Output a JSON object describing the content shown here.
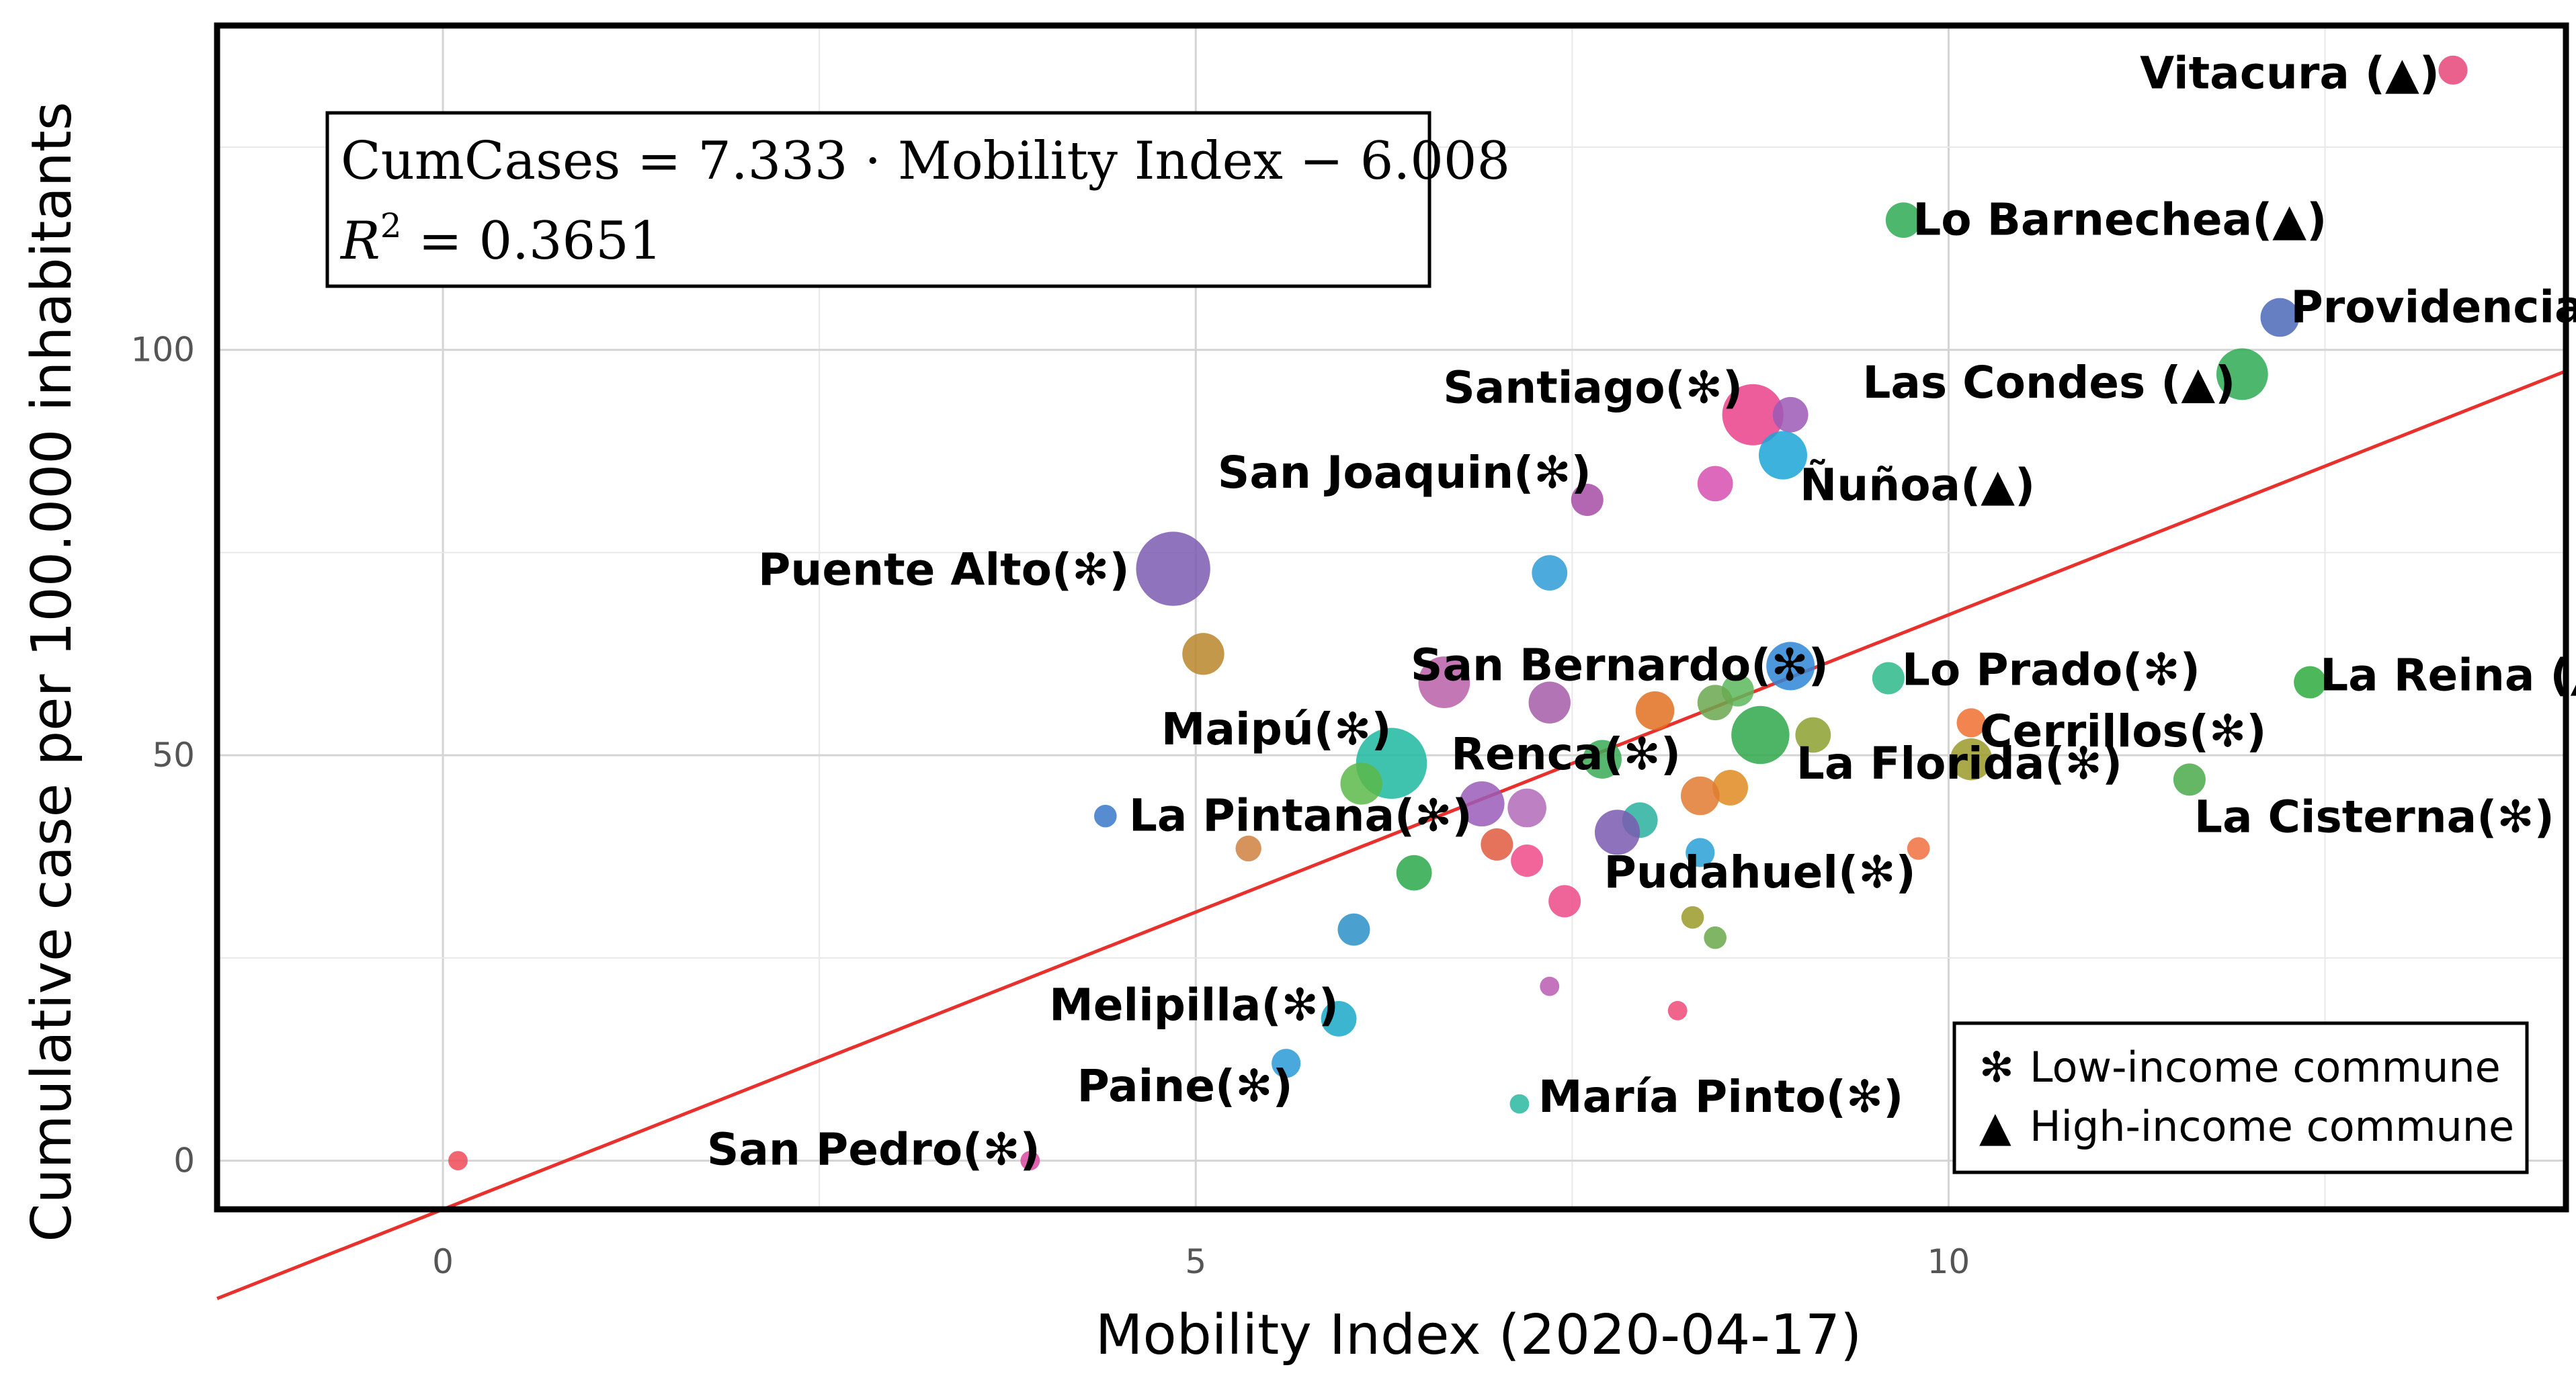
{
  "chart_data": {
    "type": "scatter",
    "xlabel": "Mobility Index (2020-04-17)",
    "ylabel": "Cumulative case per 100.000 inhabitants",
    "xlim": [
      -1.5,
      14.1
    ],
    "ylim": [
      -6,
      140
    ],
    "x_ticks": [
      0,
      5,
      10
    ],
    "y_ticks": [
      0,
      50,
      100
    ],
    "grid": true,
    "regression": {
      "equation": "CumCases = 7.333 · Mobility Index − 6.008",
      "r2_label": "R",
      "r2_sup": "2",
      "r2_value": " = 0.3651",
      "slope": 7.333,
      "intercept": -6.008,
      "color": "#e8312c"
    },
    "legend": {
      "position": "bottom-right",
      "items": [
        {
          "symbol": "✻",
          "label": "Low-income commune"
        },
        {
          "symbol": "▲",
          "label": "High-income commune"
        }
      ]
    },
    "points": [
      {
        "x": 13.35,
        "y": 134.5,
        "size": 9,
        "color": "#e8457a",
        "label": "Vitacura (▲)"
      },
      {
        "x": 9.7,
        "y": 116,
        "size": 11,
        "color": "#2eaa55",
        "label": "Lo Barnechea(▲)"
      },
      {
        "x": 12.2,
        "y": 104,
        "size": 12,
        "color": "#4b68b8",
        "label": "Providencia(▲)"
      },
      {
        "x": 11.95,
        "y": 97,
        "size": 16,
        "color": "#2eaa55",
        "label": "Las Condes (▲)"
      },
      {
        "x": 8.7,
        "y": 92,
        "size": 19,
        "color": "#ea3f8a",
        "label": "Santiago(✻)"
      },
      {
        "x": 8.95,
        "y": 92,
        "size": 11,
        "color": "#9b59b6",
        "label": ""
      },
      {
        "x": 8.9,
        "y": 87,
        "size": 15,
        "color": "#1aa5d6",
        "label": "Ñuñoa(▲)"
      },
      {
        "x": 8.45,
        "y": 83.5,
        "size": 11,
        "color": "#d64fb0",
        "label": ""
      },
      {
        "x": 7.6,
        "y": 81.5,
        "size": 10,
        "color": "#a64ca6",
        "label": "San Joaquin(✻)"
      },
      {
        "x": 4.85,
        "y": 73,
        "size": 23,
        "color": "#7b5bb0",
        "label": "Puente Alto(✻)"
      },
      {
        "x": 7.35,
        "y": 72.5,
        "size": 11,
        "color": "#2e9bd6",
        "label": ""
      },
      {
        "x": 5.05,
        "y": 62.5,
        "size": 13,
        "color": "#b8862a",
        "label": ""
      },
      {
        "x": 8.95,
        "y": 61,
        "size": 15,
        "color": "#2e86d6",
        "label": ""
      },
      {
        "x": 6.65,
        "y": 59,
        "size": 16,
        "color": "#b85fa8",
        "label": "San Bernardo(✻)"
      },
      {
        "x": 9.6,
        "y": 59.5,
        "size": 10,
        "color": "#2eb88a",
        "label": "Lo Prado(✻)"
      },
      {
        "x": 12.4,
        "y": 59,
        "size": 10,
        "color": "#2eaa3e",
        "label": "La Reina (▲)"
      },
      {
        "x": 8.6,
        "y": 58,
        "size": 10,
        "color": "#5cb85c",
        "label": ""
      },
      {
        "x": 8.45,
        "y": 56.5,
        "size": 11,
        "color": "#6aa84f",
        "label": ""
      },
      {
        "x": 7.35,
        "y": 56.5,
        "size": 13,
        "color": "#a45ca8",
        "label": ""
      },
      {
        "x": 8.05,
        "y": 55.5,
        "size": 12,
        "color": "#e07020",
        "label": ""
      },
      {
        "x": 10.15,
        "y": 54,
        "size": 9,
        "color": "#f07030",
        "label": "Cerrillos(✻)"
      },
      {
        "x": 8.75,
        "y": 52.5,
        "size": 18,
        "color": "#2ea84a",
        "label": ""
      },
      {
        "x": 9.1,
        "y": 52.5,
        "size": 11,
        "color": "#8ca030",
        "label": "La Florida(✻)"
      },
      {
        "x": 6.3,
        "y": 49,
        "size": 22,
        "color": "#1fb8a0",
        "label": "Maipú(✻)"
      },
      {
        "x": 7.7,
        "y": 49.5,
        "size": 12,
        "color": "#3aaa55",
        "label": "Renca(✻)"
      },
      {
        "x": 10.15,
        "y": 49.5,
        "size": 13,
        "color": "#9a9a2a",
        "label": ""
      },
      {
        "x": 6.1,
        "y": 46.5,
        "size": 13,
        "color": "#5cb84a",
        "label": ""
      },
      {
        "x": 11.6,
        "y": 47,
        "size": 10,
        "color": "#4aaa4a",
        "label": "La Cisterna(✻)"
      },
      {
        "x": 8.55,
        "y": 46,
        "size": 11,
        "color": "#e08a20",
        "label": ""
      },
      {
        "x": 8.35,
        "y": 45,
        "size": 12,
        "color": "#e07a30",
        "label": ""
      },
      {
        "x": 6.9,
        "y": 44,
        "size": 14,
        "color": "#9a5cb8",
        "label": ""
      },
      {
        "x": 7.2,
        "y": 43.5,
        "size": 12,
        "color": "#b06ab8",
        "label": ""
      },
      {
        "x": 4.4,
        "y": 42.5,
        "size": 7,
        "color": "#3a78c8",
        "label": "La Pintana(✻)"
      },
      {
        "x": 7.95,
        "y": 42,
        "size": 11,
        "color": "#2ab0a0",
        "label": ""
      },
      {
        "x": 7.8,
        "y": 40.5,
        "size": 14,
        "color": "#7a5ab0",
        "label": "Pudahuel(✻)"
      },
      {
        "x": 7.0,
        "y": 39,
        "size": 10,
        "color": "#e05a40",
        "label": ""
      },
      {
        "x": 5.35,
        "y": 38.5,
        "size": 8,
        "color": "#d08040",
        "label": ""
      },
      {
        "x": 9.8,
        "y": 38.5,
        "size": 7,
        "color": "#f07040",
        "label": ""
      },
      {
        "x": 8.35,
        "y": 38,
        "size": 9,
        "color": "#2aa0d6",
        "label": ""
      },
      {
        "x": 7.2,
        "y": 37,
        "size": 10,
        "color": "#ee4a8a",
        "label": ""
      },
      {
        "x": 6.45,
        "y": 35.5,
        "size": 11,
        "color": "#2aa84a",
        "label": ""
      },
      {
        "x": 7.45,
        "y": 32,
        "size": 10,
        "color": "#ec4a88",
        "label": ""
      },
      {
        "x": 8.3,
        "y": 30,
        "size": 7,
        "color": "#9a9a2a",
        "label": ""
      },
      {
        "x": 6.05,
        "y": 28.5,
        "size": 10,
        "color": "#2a90c8",
        "label": ""
      },
      {
        "x": 8.45,
        "y": 27.5,
        "size": 7,
        "color": "#6aa84a",
        "label": ""
      },
      {
        "x": 7.35,
        "y": 21.5,
        "size": 6,
        "color": "#b85cb0",
        "label": ""
      },
      {
        "x": 8.2,
        "y": 18.5,
        "size": 6,
        "color": "#ee4a78",
        "label": ""
      },
      {
        "x": 5.95,
        "y": 17.5,
        "size": 11,
        "color": "#1aa8c8",
        "label": "Melipilla(✻)"
      },
      {
        "x": 5.6,
        "y": 12,
        "size": 9,
        "color": "#2a9ad6",
        "label": "Paine(✻)"
      },
      {
        "x": 7.15,
        "y": 7,
        "size": 6,
        "color": "#2ab8a0",
        "label": "María Pinto(✻)"
      },
      {
        "x": 0.1,
        "y": 0,
        "size": 6,
        "color": "#ee4a58",
        "label": ""
      },
      {
        "x": 3.9,
        "y": 0,
        "size": 6,
        "color": "#d84aa0",
        "label": "San Pedro(✻)"
      }
    ]
  }
}
